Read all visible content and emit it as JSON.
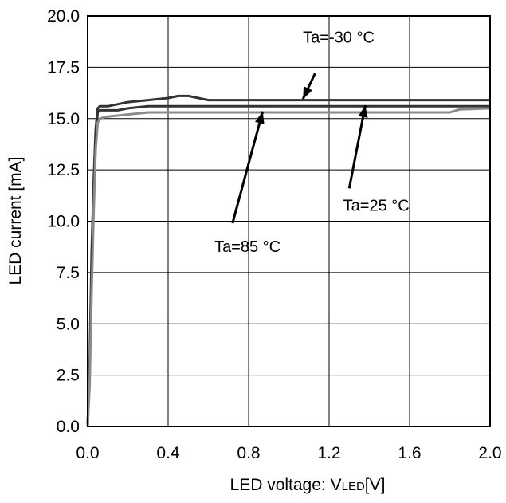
{
  "chart_data": {
    "type": "line",
    "title": "",
    "xlabel": "LED voltage: V",
    "xlabel_sub": "LED",
    "xlabel_unit": "[V]",
    "ylabel": "LED current [mA]",
    "xlim": [
      0,
      2.0
    ],
    "ylim": [
      0,
      20.0
    ],
    "x_ticks": [
      "0.0",
      "0.4",
      "0.8",
      "1.2",
      "1.6",
      "2.0"
    ],
    "y_ticks": [
      "0.0",
      "2.5",
      "5.0",
      "7.5",
      "10.0",
      "12.5",
      "15.0",
      "17.5",
      "20.0"
    ],
    "grid": true,
    "series": [
      {
        "name": "Ta=-30 °C",
        "color": "#333333",
        "x": [
          0.0,
          0.01,
          0.02,
          0.03,
          0.04,
          0.05,
          0.06,
          0.1,
          0.15,
          0.2,
          0.3,
          0.4,
          0.45,
          0.5,
          0.55,
          0.6,
          0.8,
          1.0,
          1.2,
          1.4,
          1.6,
          1.8,
          2.0
        ],
        "y": [
          0.0,
          3.0,
          8.5,
          12.0,
          14.5,
          15.5,
          15.6,
          15.6,
          15.7,
          15.8,
          15.9,
          16.0,
          16.1,
          16.1,
          16.0,
          15.9,
          15.9,
          15.9,
          15.9,
          15.9,
          15.9,
          15.9,
          15.9
        ]
      },
      {
        "name": "Ta=25 °C",
        "color": "#333333",
        "x": [
          0.0,
          0.01,
          0.02,
          0.03,
          0.04,
          0.05,
          0.06,
          0.1,
          0.15,
          0.2,
          0.3,
          0.4,
          0.6,
          0.8,
          1.0,
          1.2,
          1.4,
          1.6,
          1.8,
          2.0
        ],
        "y": [
          0.0,
          2.5,
          7.5,
          11.5,
          14.2,
          15.3,
          15.4,
          15.4,
          15.4,
          15.5,
          15.6,
          15.6,
          15.6,
          15.6,
          15.6,
          15.6,
          15.6,
          15.6,
          15.6,
          15.6
        ]
      },
      {
        "name": "Ta=85 °C",
        "color": "#8a8a8a",
        "x": [
          0.0,
          0.01,
          0.02,
          0.03,
          0.04,
          0.05,
          0.06,
          0.1,
          0.2,
          0.3,
          0.4,
          0.6,
          0.8,
          1.0,
          1.2,
          1.4,
          1.6,
          1.8,
          1.85,
          2.0
        ],
        "y": [
          0.0,
          2.0,
          6.5,
          10.5,
          13.5,
          14.8,
          15.0,
          15.1,
          15.2,
          15.3,
          15.3,
          15.3,
          15.3,
          15.3,
          15.3,
          15.3,
          15.3,
          15.3,
          15.45,
          15.5
        ]
      }
    ],
    "annotations": [
      {
        "text": "Ta=-30 °C",
        "label_x": 1.07,
        "label_y": 18.7,
        "arrow_from": [
          1.13,
          17.2
        ],
        "arrow_to": [
          1.07,
          15.95
        ]
      },
      {
        "text": "Ta=25 °C",
        "label_x": 1.27,
        "label_y": 10.5,
        "arrow_from": [
          1.3,
          11.6
        ],
        "arrow_to": [
          1.38,
          15.65
        ]
      },
      {
        "text": "Ta=85 °C",
        "label_x": 0.63,
        "label_y": 8.5,
        "arrow_from": [
          0.72,
          9.9
        ],
        "arrow_to": [
          0.87,
          15.35
        ]
      }
    ]
  }
}
